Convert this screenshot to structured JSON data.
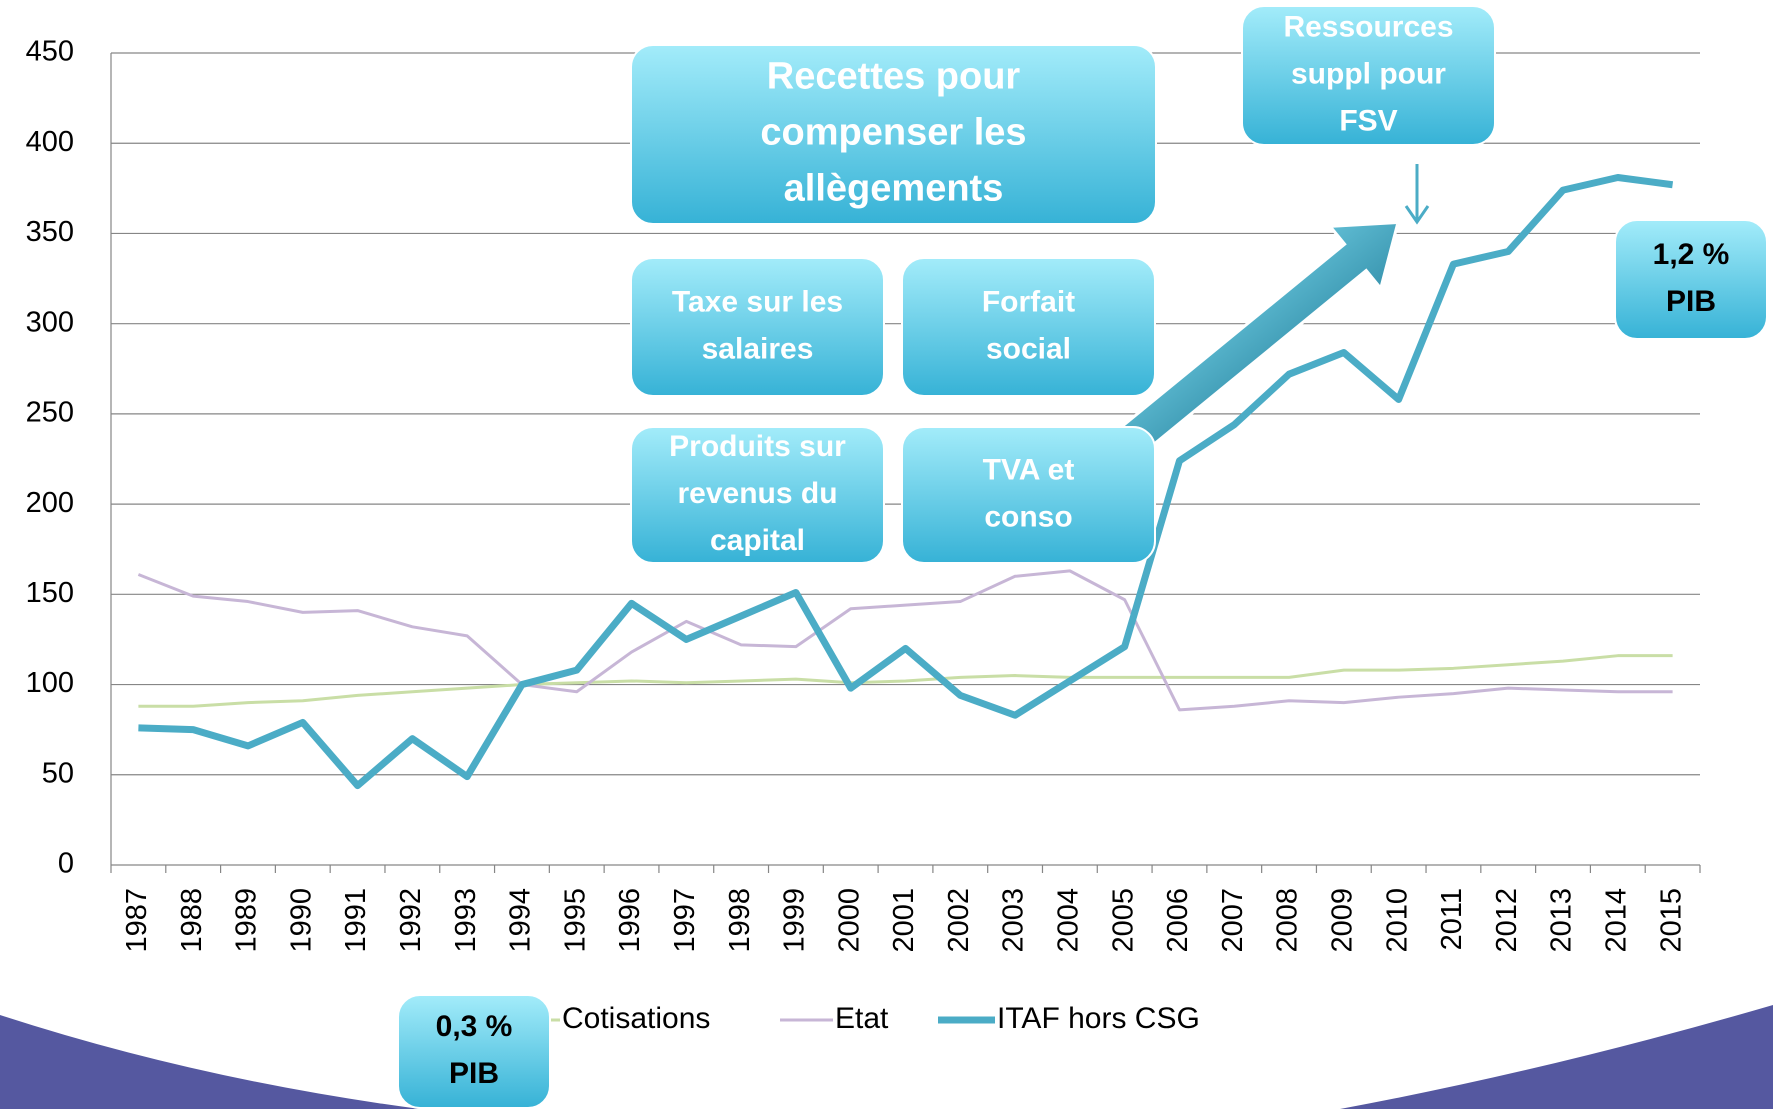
{
  "chart_data": {
    "type": "line",
    "categories": [
      "1987",
      "1988",
      "1989",
      "1990",
      "1991",
      "1992",
      "1993",
      "1994",
      "1995",
      "1996",
      "1997",
      "1998",
      "1999",
      "2000",
      "2001",
      "2002",
      "2003",
      "2004",
      "2005",
      "2006",
      "2007",
      "2008",
      "2009",
      "2010",
      "2011",
      "2012",
      "2013",
      "2014",
      "2015"
    ],
    "series": [
      {
        "name": "Cotisations",
        "color": "#c9dea6",
        "values": [
          88,
          88,
          90,
          91,
          94,
          96,
          98,
          100,
          101,
          102,
          101,
          102,
          103,
          101,
          102,
          104,
          105,
          104,
          104,
          104,
          104,
          104,
          108,
          108,
          109,
          111,
          113,
          116,
          116
        ]
      },
      {
        "name": "Etat",
        "color": "#c7b6d6",
        "values": [
          161,
          149,
          146,
          140,
          141,
          132,
          127,
          100,
          96,
          118,
          135,
          122,
          121,
          142,
          144,
          146,
          160,
          163,
          147,
          86,
          88,
          91,
          90,
          93,
          95,
          98,
          97,
          96,
          96
        ]
      },
      {
        "name": "ITAF hors CSG",
        "color": "#4bacc6",
        "values": [
          76,
          75,
          66,
          79,
          44,
          70,
          49,
          100,
          108,
          145,
          125,
          138,
          151,
          98,
          120,
          94,
          83,
          102,
          121,
          224,
          244,
          272,
          284,
          258,
          333,
          340,
          374,
          381,
          377
        ]
      }
    ],
    "ylim": [
      0,
      450
    ],
    "yticks": [
      0,
      50,
      100,
      150,
      200,
      250,
      300,
      350,
      400,
      450
    ],
    "grid": true,
    "legend": "bottom",
    "annotations": [
      {
        "lines": [
          "Recettes pour",
          "compenser les",
          "allègements"
        ]
      },
      {
        "lines": [
          "Ressources",
          "suppl pour",
          "FSV"
        ]
      },
      {
        "lines": [
          "Taxe sur les",
          "salaires"
        ]
      },
      {
        "lines": [
          "Forfait",
          "social"
        ]
      },
      {
        "lines": [
          "Produits sur",
          "revenus du",
          "capital"
        ]
      },
      {
        "lines": [
          "TVA et",
          "conso"
        ]
      },
      {
        "lines": [
          "1,2 %",
          "PIB"
        ]
      },
      {
        "lines": [
          "0,3 %",
          "PIB"
        ]
      }
    ]
  }
}
